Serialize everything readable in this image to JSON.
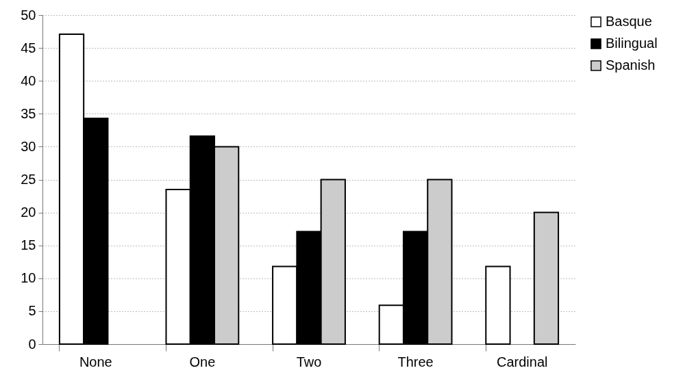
{
  "chart_data": {
    "type": "bar",
    "categories": [
      "None",
      "One",
      "Two",
      "Three",
      "Cardinal"
    ],
    "series": [
      {
        "name": "Basque",
        "color": "#ffffff",
        "values": [
          47.1,
          23.5,
          11.8,
          5.9,
          11.8
        ]
      },
      {
        "name": "Bilingual",
        "color": "#000000",
        "values": [
          34.3,
          31.6,
          17.1,
          17.1,
          null
        ]
      },
      {
        "name": "Spanish",
        "color": "#cccccc",
        "values": [
          null,
          30,
          25,
          25,
          20
        ]
      }
    ],
    "ylim": [
      0,
      50
    ],
    "yticks": [
      0,
      5,
      10,
      15,
      20,
      25,
      30,
      35,
      40,
      45,
      50
    ],
    "grid": "y",
    "legend": "right"
  }
}
